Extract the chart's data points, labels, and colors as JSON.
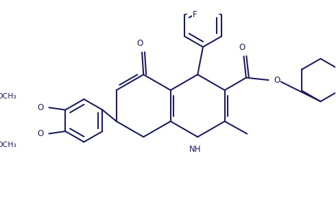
{
  "bg_color": "#ffffff",
  "line_color": "#1a1a5e",
  "line_width": 1.5,
  "font_size": 8.5,
  "figsize": [
    4.9,
    3.13
  ],
  "dpi": 100,
  "xlim": [
    0,
    10
  ],
  "ylim": [
    0,
    6.4
  ]
}
